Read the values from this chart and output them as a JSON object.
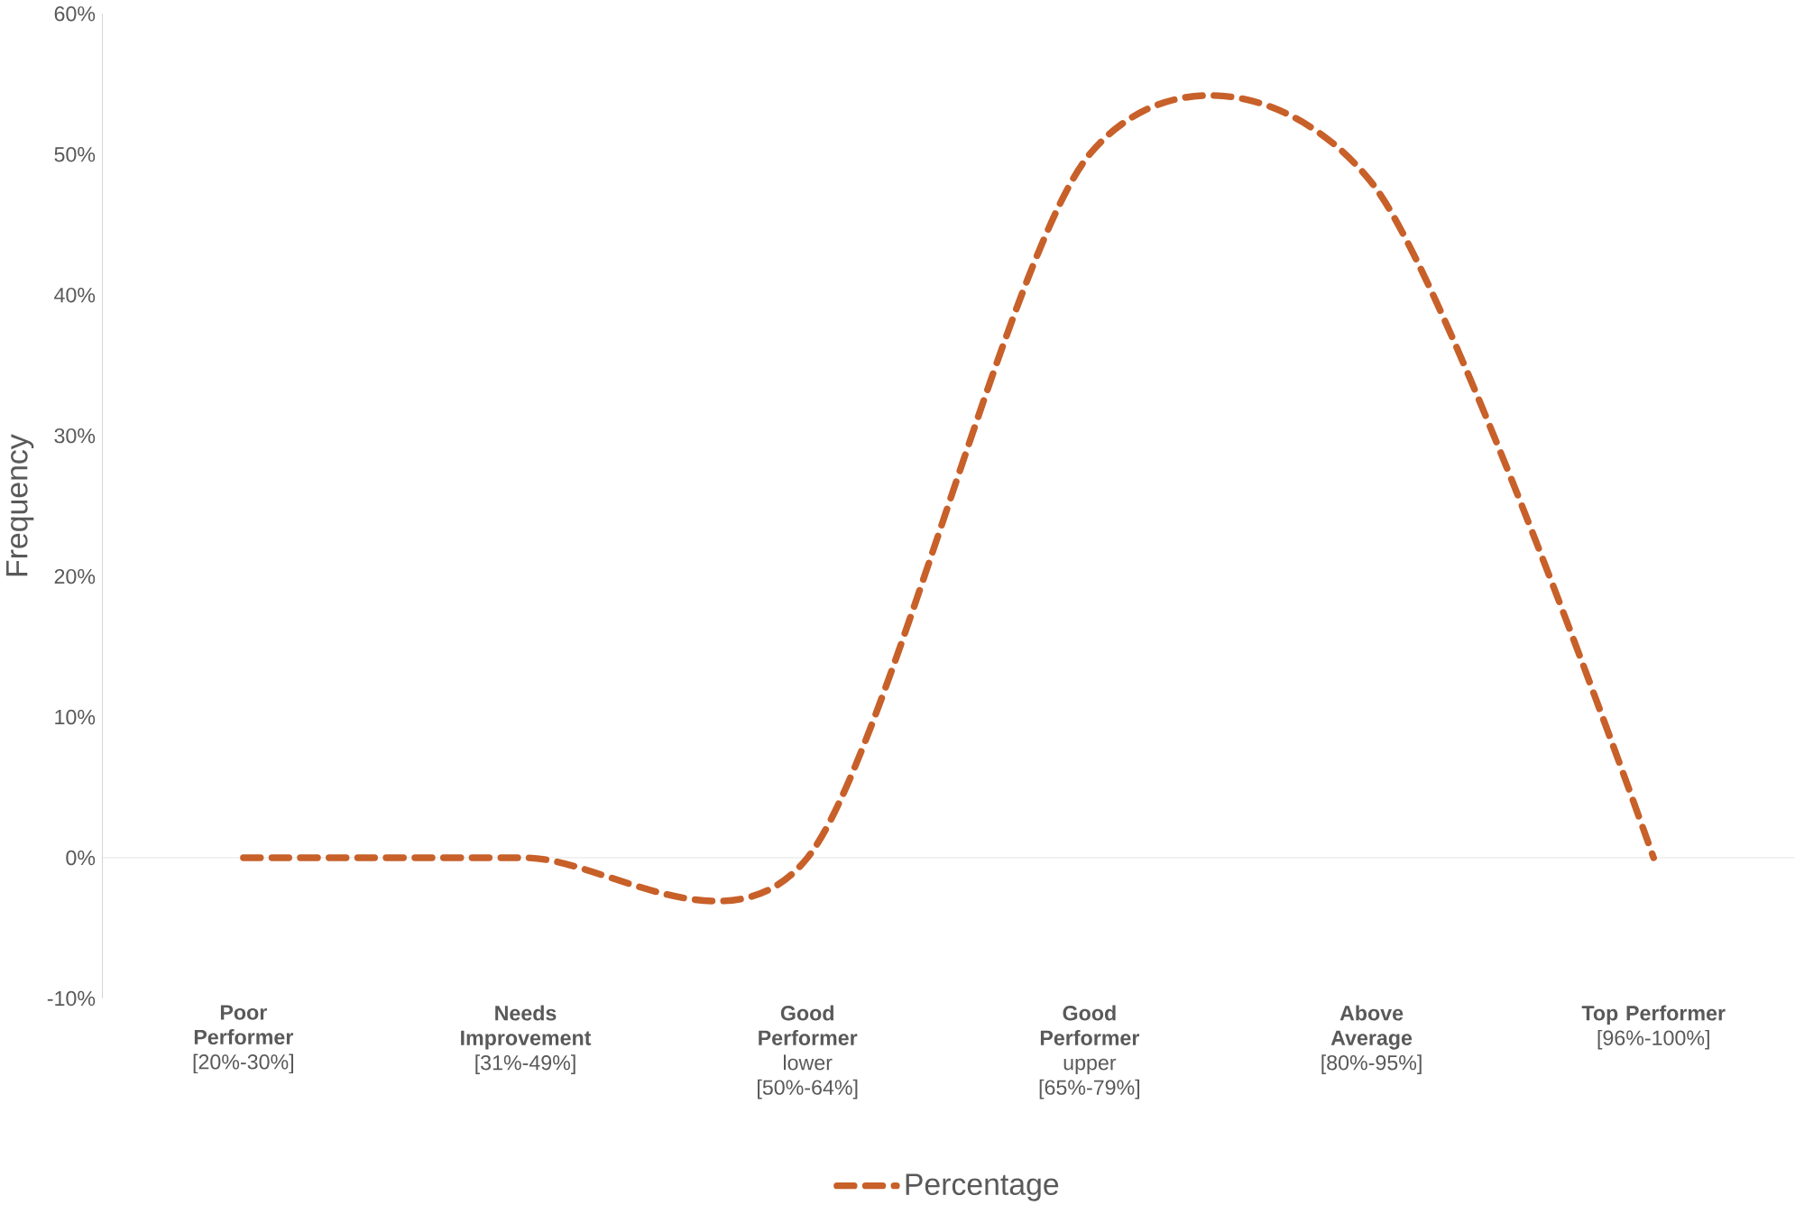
{
  "chart_data": {
    "type": "line",
    "ylabel": "Frequency",
    "categories": [
      "**Poor Performer** [20%-30%]",
      "**Needs Improvement** [31%-49%]",
      "**Good Performer** lower [50%-64%]",
      "**Good Performer** upper [65%-79%]",
      "**Above Average** [80%-95%]",
      "**Top Performer** [96%-100%]"
    ],
    "series": [
      {
        "name": "Percentage",
        "color": "#c8602a",
        "values": [
          0,
          0,
          0,
          50,
          48,
          0
        ]
      }
    ],
    "ylim": [
      -10,
      60
    ],
    "yticks": [
      {
        "value": -10,
        "label": "-10%"
      },
      {
        "value": 0,
        "label": "0%"
      },
      {
        "value": 10,
        "label": "10%"
      },
      {
        "value": 20,
        "label": "20%"
      },
      {
        "value": 30,
        "label": "30%"
      },
      {
        "value": 40,
        "label": "40%"
      },
      {
        "value": 50,
        "label": "50%"
      },
      {
        "value": 60,
        "label": "60%"
      }
    ],
    "ref_lines": [
      {
        "axis": "y",
        "value": 0,
        "color": "#d9d9d9"
      }
    ],
    "line_style": "dashed",
    "legend": "bottom"
  }
}
